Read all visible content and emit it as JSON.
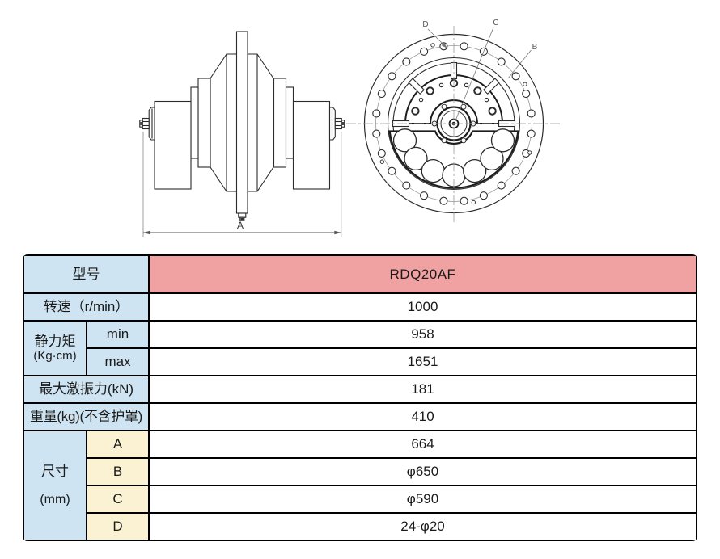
{
  "drawing": {
    "dim_label": "A",
    "callouts": {
      "d": "D",
      "c": "C",
      "b": "B"
    }
  },
  "table": {
    "model": {
      "label": "型号",
      "value": "RDQ20AF"
    },
    "speed": {
      "label": "转速（r/min）",
      "value": "1000"
    },
    "static_moment": {
      "label": "静力矩",
      "unit": "(Kg·cm)",
      "min_label": "min",
      "min_value": "958",
      "max_label": "max",
      "max_value": "1651"
    },
    "max_force": {
      "label": "最大激振力(kN)",
      "value": "181"
    },
    "weight": {
      "label": "重量(kg)(不含护罩)",
      "value": "410"
    },
    "dimensions": {
      "label": "尺寸",
      "unit": "(mm)",
      "rows": [
        {
          "key": "A",
          "value": "664"
        },
        {
          "key": "B",
          "value": "φ650"
        },
        {
          "key": "C",
          "value": "φ590"
        },
        {
          "key": "D",
          "value": "24-φ20"
        }
      ]
    }
  },
  "colors": {
    "label_bg": "#cfe4f2",
    "model_value_bg": "#f0a1a1",
    "dim_key_bg": "#fbf2d3",
    "border": "#000000",
    "line": "#2b2b2b"
  }
}
